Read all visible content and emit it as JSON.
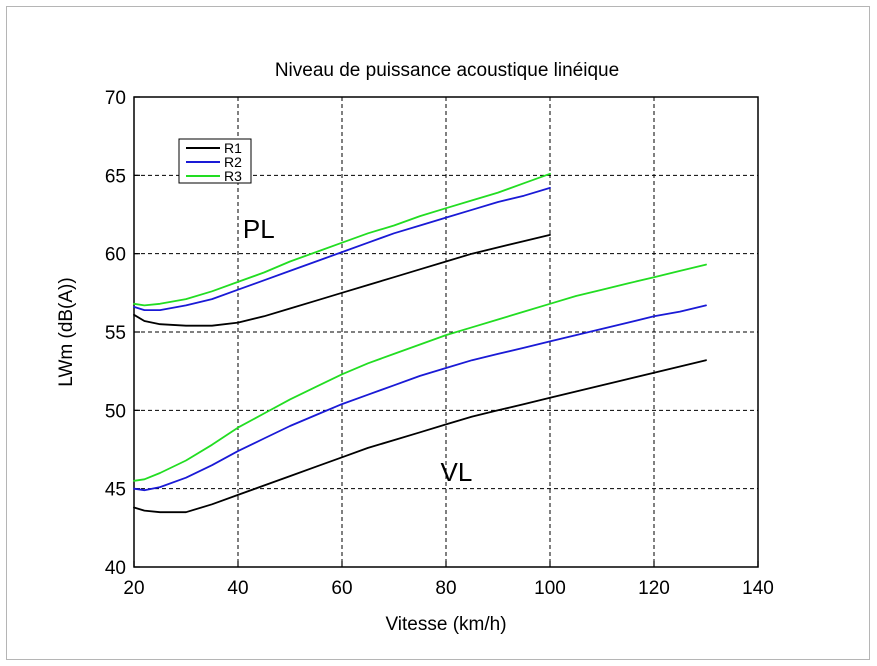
{
  "chart_data": {
    "type": "line",
    "title": "Niveau de puissance acoustique linéique",
    "xlabel": "Vitesse (km/h)",
    "ylabel": "LWm (dB(A))",
    "xlim": [
      20,
      140
    ],
    "ylim": [
      40,
      70
    ],
    "xticks": [
      20,
      40,
      60,
      80,
      100,
      120,
      140
    ],
    "yticks": [
      40,
      45,
      50,
      55,
      60,
      65,
      70
    ],
    "grid": true,
    "legend_position": "top-left",
    "annotations": [
      {
        "text": "PL",
        "x": 44,
        "y": 61.0
      },
      {
        "text": "VL",
        "x": 82,
        "y": 45.5
      }
    ],
    "series": [
      {
        "name": "R1",
        "group": "PL",
        "color": "#000000",
        "x": [
          20,
          22,
          25,
          30,
          35,
          40,
          45,
          50,
          55,
          60,
          65,
          70,
          75,
          80,
          85,
          90,
          95,
          100
        ],
        "y": [
          56.1,
          55.7,
          55.5,
          55.4,
          55.4,
          55.6,
          56.0,
          56.5,
          57.0,
          57.5,
          58.0,
          58.5,
          59.0,
          59.5,
          60.0,
          60.4,
          60.8,
          61.2
        ]
      },
      {
        "name": "R2",
        "group": "PL",
        "color": "#1a1ad6",
        "x": [
          20,
          22,
          25,
          30,
          35,
          40,
          45,
          50,
          55,
          60,
          65,
          70,
          75,
          80,
          85,
          90,
          95,
          100
        ],
        "y": [
          56.6,
          56.4,
          56.4,
          56.7,
          57.1,
          57.7,
          58.3,
          58.9,
          59.5,
          60.1,
          60.7,
          61.3,
          61.8,
          62.3,
          62.8,
          63.3,
          63.7,
          64.2
        ]
      },
      {
        "name": "R3",
        "group": "PL",
        "color": "#22dd22",
        "x": [
          20,
          22,
          25,
          30,
          35,
          40,
          45,
          50,
          55,
          60,
          65,
          70,
          75,
          80,
          85,
          90,
          95,
          100
        ],
        "y": [
          56.8,
          56.7,
          56.8,
          57.1,
          57.6,
          58.2,
          58.8,
          59.5,
          60.1,
          60.7,
          61.3,
          61.8,
          62.4,
          62.9,
          63.4,
          63.9,
          64.5,
          65.1
        ]
      },
      {
        "name": "R1",
        "group": "VL",
        "color": "#000000",
        "x": [
          20,
          22,
          25,
          30,
          35,
          40,
          45,
          50,
          55,
          60,
          65,
          70,
          75,
          80,
          85,
          90,
          95,
          100,
          105,
          110,
          115,
          120,
          125,
          130
        ],
        "y": [
          43.8,
          43.6,
          43.5,
          43.5,
          44.0,
          44.6,
          45.2,
          45.8,
          46.4,
          47.0,
          47.6,
          48.1,
          48.6,
          49.1,
          49.6,
          50.0,
          50.4,
          50.8,
          51.2,
          51.6,
          52.0,
          52.4,
          52.8,
          53.2
        ]
      },
      {
        "name": "R2",
        "group": "VL",
        "color": "#1a1ad6",
        "x": [
          20,
          22,
          25,
          30,
          35,
          40,
          45,
          50,
          55,
          60,
          65,
          70,
          75,
          80,
          85,
          90,
          95,
          100,
          105,
          110,
          115,
          120,
          125,
          130
        ],
        "y": [
          45.0,
          44.9,
          45.1,
          45.7,
          46.5,
          47.4,
          48.2,
          49.0,
          49.7,
          50.4,
          51.0,
          51.6,
          52.2,
          52.7,
          53.2,
          53.6,
          54.0,
          54.4,
          54.8,
          55.2,
          55.6,
          56.0,
          56.3,
          56.7
        ]
      },
      {
        "name": "R3",
        "group": "VL",
        "color": "#22dd22",
        "x": [
          20,
          22,
          25,
          30,
          35,
          40,
          45,
          50,
          55,
          60,
          65,
          70,
          75,
          80,
          85,
          90,
          95,
          100,
          105,
          110,
          115,
          120,
          125,
          130
        ],
        "y": [
          45.5,
          45.6,
          46.0,
          46.8,
          47.8,
          48.9,
          49.8,
          50.7,
          51.5,
          52.3,
          53.0,
          53.6,
          54.2,
          54.8,
          55.3,
          55.8,
          56.3,
          56.8,
          57.3,
          57.7,
          58.1,
          58.5,
          58.9,
          59.3
        ]
      }
    ],
    "legend": [
      {
        "label": "R1",
        "color": "#000000"
      },
      {
        "label": "R2",
        "color": "#1a1ad6"
      },
      {
        "label": "R3",
        "color": "#22dd22"
      }
    ]
  }
}
